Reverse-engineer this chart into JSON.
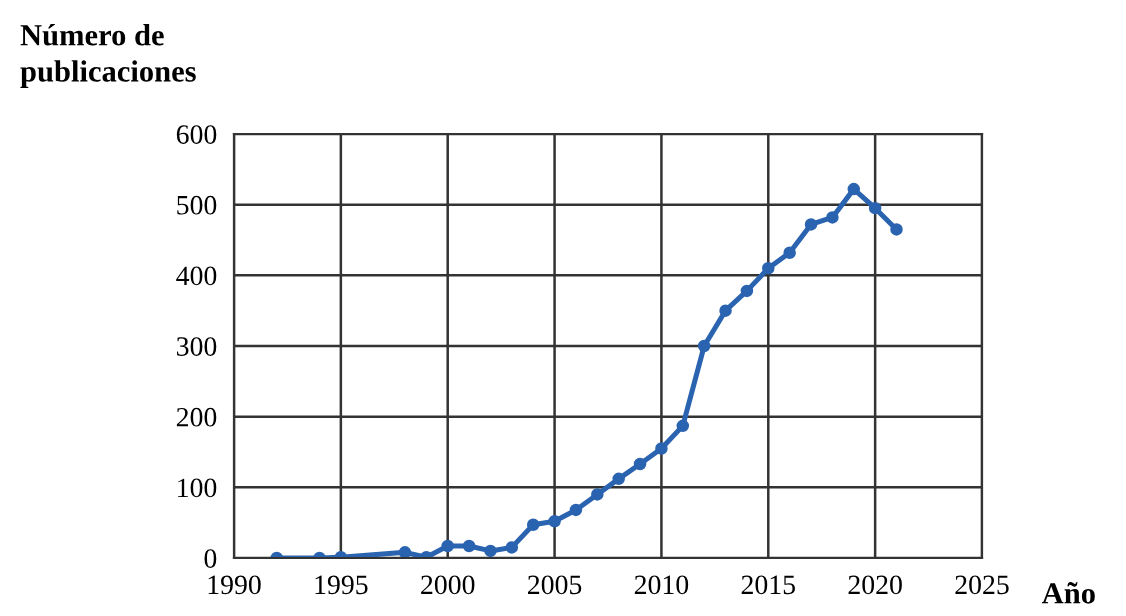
{
  "chart_data": {
    "type": "line",
    "xlabel": "Año",
    "ylabel": "Número de\npublicaciones",
    "x": [
      1992,
      1994,
      1995,
      1998,
      1999,
      2000,
      2001,
      2002,
      2003,
      2004,
      2005,
      2006,
      2007,
      2008,
      2009,
      2010,
      2011,
      2012,
      2013,
      2014,
      2015,
      2016,
      2017,
      2018,
      2019,
      2020,
      2021
    ],
    "series": [
      {
        "color": "#2a63b0",
        "values": [
          0,
          0,
          1,
          8,
          1,
          17,
          17,
          10,
          15,
          47,
          52,
          68,
          90,
          112,
          133,
          155,
          187,
          300,
          350,
          378,
          410,
          432,
          472,
          482,
          522,
          495,
          465
        ]
      }
    ],
    "xlim": [
      1990,
      2025
    ],
    "xticks": [
      1990,
      1995,
      2000,
      2005,
      2010,
      2015,
      2020,
      2025
    ],
    "ylim": [
      0,
      600
    ],
    "yticks": [
      0,
      100,
      200,
      300,
      400,
      500,
      600
    ],
    "grid": true,
    "marker": "circle",
    "line_style": "solid",
    "legend": false
  }
}
